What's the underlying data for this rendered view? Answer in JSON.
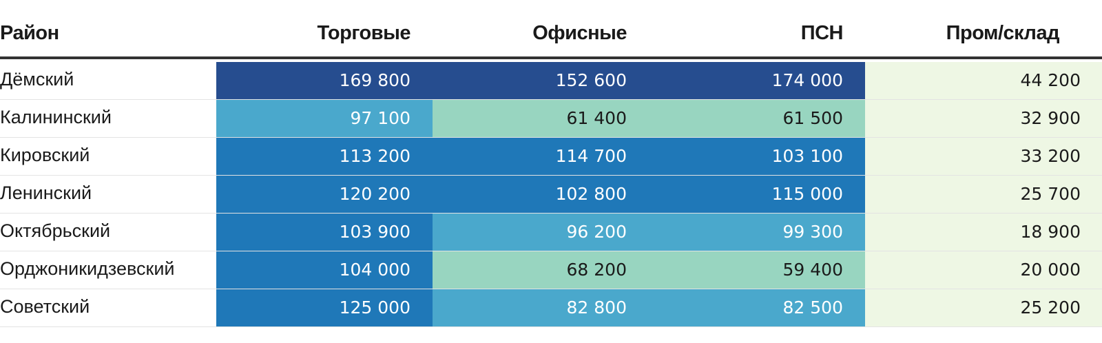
{
  "chart_data": {
    "type": "table",
    "columns": [
      "Район",
      "Торговые",
      "Офисные",
      "ПСН",
      "Пром/склад"
    ],
    "rows": [
      {
        "district": "Дёмский",
        "values": [
          "169 800",
          "152 600",
          "174 000",
          "44 200"
        ]
      },
      {
        "district": "Калининский",
        "values": [
          "97 100",
          "61 400",
          "61 500",
          "32 900"
        ]
      },
      {
        "district": "Кировский",
        "values": [
          "113 200",
          "114 700",
          "103 100",
          "33 200"
        ]
      },
      {
        "district": "Ленинский",
        "values": [
          "120 200",
          "102 800",
          "115 000",
          "25 700"
        ]
      },
      {
        "district": "Октябрьский",
        "values": [
          "103 900",
          "96 200",
          "99 300",
          "18 900"
        ]
      },
      {
        "district": "Орджоникидзевский",
        "values": [
          "104 000",
          "68 200",
          "59 400",
          "20 000"
        ]
      },
      {
        "district": "Советский",
        "values": [
          "125 000",
          "82 800",
          "82 500",
          "25 200"
        ]
      }
    ],
    "color_scale": {
      "bins": [
        0,
        50000,
        75000,
        100000,
        150000
      ],
      "colors": [
        "#eef7e4",
        "#98d5c0",
        "#4aa8cc",
        "#1f78b8",
        "#264d8f"
      ],
      "text_light": "#ffffff",
      "text_dark": "#1a1a1a"
    }
  }
}
